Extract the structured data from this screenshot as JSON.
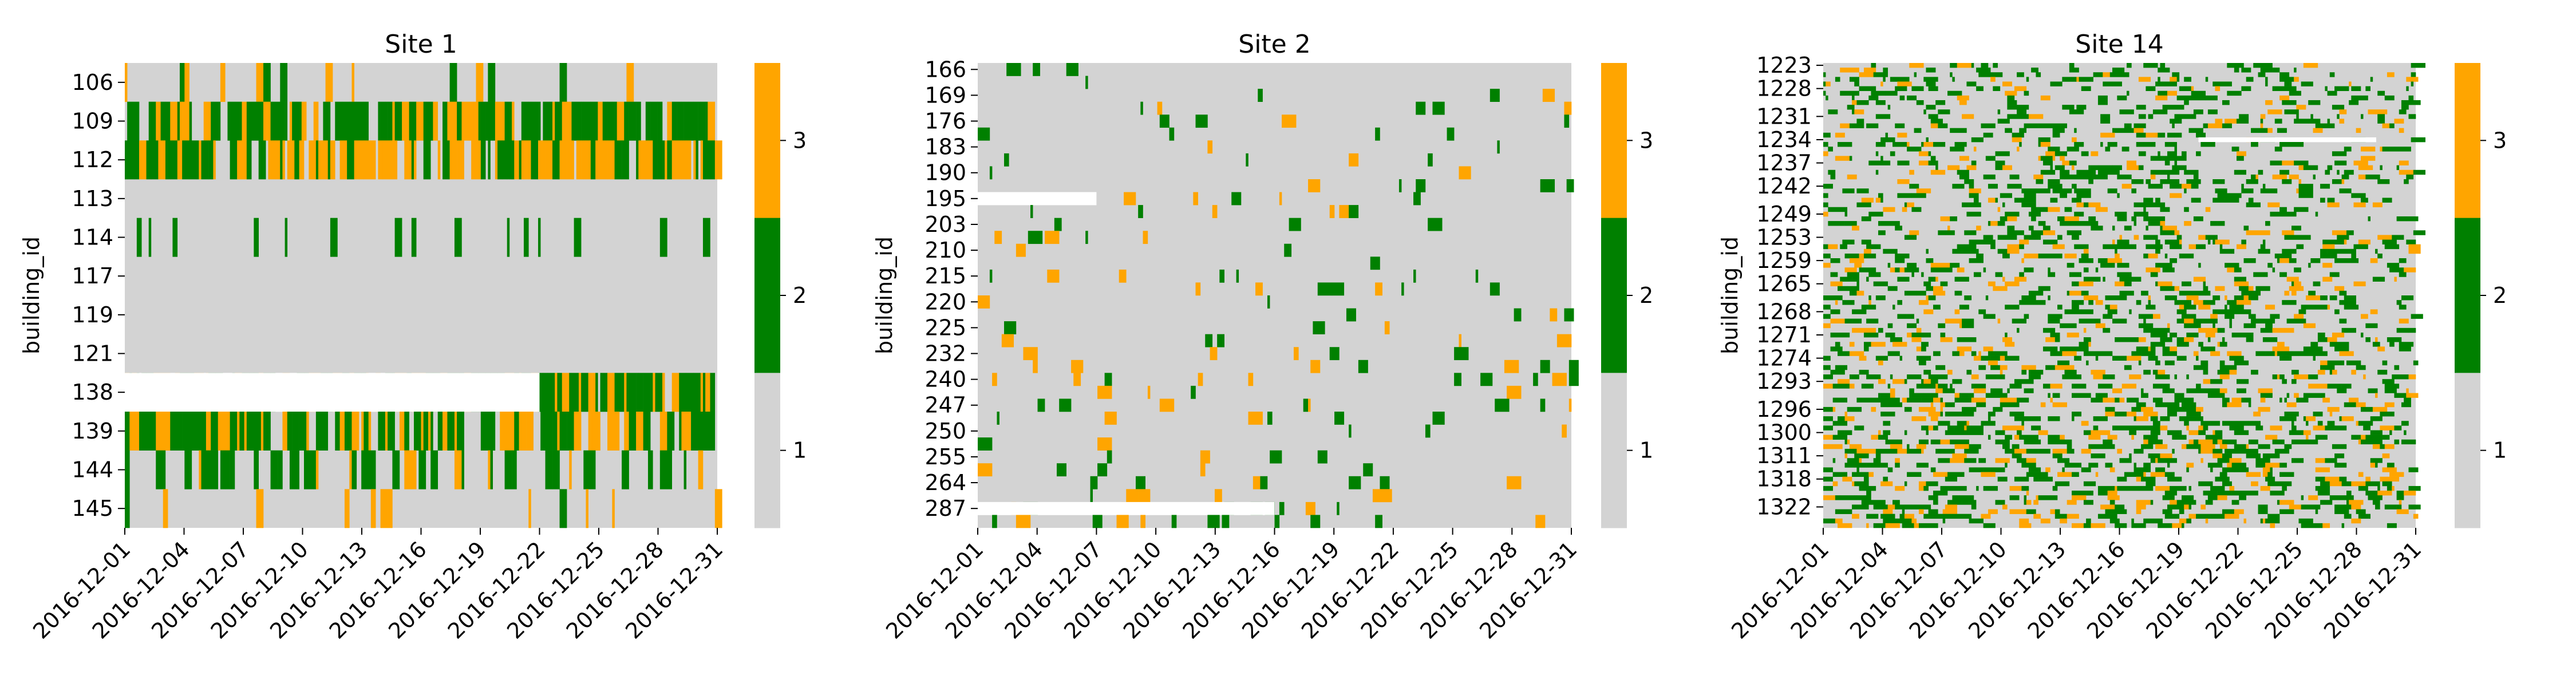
{
  "colors": {
    "level_1": "#d3d3d3",
    "level_2": "#008000",
    "level_3": "#ffa500",
    "missing": "#ffffff"
  },
  "chart_data": [
    {
      "type": "heatmap",
      "title": "Site 1",
      "ylabel": "building_id",
      "xlabel": "",
      "x_ticks": [
        "2016-12-01",
        "2016-12-04",
        "2016-12-07",
        "2016-12-10",
        "2016-12-13",
        "2016-12-16",
        "2016-12-19",
        "2016-12-22",
        "2016-12-25",
        "2016-12-28",
        "2016-12-31"
      ],
      "x_range": [
        "2016-12-01",
        "2016-12-31"
      ],
      "y_tick_labels": [
        "106",
        "109",
        "112",
        "113",
        "114",
        "117",
        "119",
        "121",
        "138",
        "139",
        "144",
        "145"
      ],
      "rows": [
        {
          "building_id": "106",
          "dominant_level": 1,
          "level_2_share": 0.05,
          "level_3_share": 0.03,
          "missing_until": null
        },
        {
          "building_id": "109",
          "dominant_level": 2,
          "level_2_share": 0.55,
          "level_3_share": 0.3,
          "missing_until": null
        },
        {
          "building_id": "112",
          "dominant_level": 3,
          "level_2_share": 0.35,
          "level_3_share": 0.5,
          "missing_until": null
        },
        {
          "building_id": "113",
          "dominant_level": 1,
          "level_2_share": 0.0,
          "level_3_share": 0.0,
          "missing_until": null
        },
        {
          "building_id": "114",
          "dominant_level": 1,
          "level_2_share": 0.12,
          "level_3_share": 0.0,
          "missing_until": null
        },
        {
          "building_id": "117",
          "dominant_level": 1,
          "level_2_share": 0.0,
          "level_3_share": 0.0,
          "missing_until": null
        },
        {
          "building_id": "119",
          "dominant_level": 1,
          "level_2_share": 0.0,
          "level_3_share": 0.02,
          "missing_until": null
        },
        {
          "building_id": "121",
          "dominant_level": 1,
          "level_2_share": 0.0,
          "level_3_share": 0.0,
          "missing_until": null
        },
        {
          "building_id": "138",
          "dominant_level": 2,
          "level_2_share": 0.5,
          "level_3_share": 0.3,
          "missing_until": "2016-12-22"
        },
        {
          "building_id": "139",
          "dominant_level": 2,
          "level_2_share": 0.55,
          "level_3_share": 0.3,
          "missing_until": null
        },
        {
          "building_id": "144",
          "dominant_level": 1,
          "level_2_share": 0.35,
          "level_3_share": 0.05,
          "missing_until": null
        },
        {
          "building_id": "145",
          "dominant_level": 1,
          "level_2_share": 0.02,
          "level_3_share": 0.05,
          "missing_until": null
        }
      ],
      "colorbar": {
        "ticks": [
          "1",
          "2",
          "3"
        ],
        "levels": [
          1,
          2,
          3
        ]
      }
    },
    {
      "type": "heatmap",
      "title": "Site 2",
      "ylabel": "building_id",
      "xlabel": "",
      "x_ticks": [
        "2016-12-01",
        "2016-12-04",
        "2016-12-07",
        "2016-12-10",
        "2016-12-13",
        "2016-12-16",
        "2016-12-19",
        "2016-12-22",
        "2016-12-25",
        "2016-12-28",
        "2016-12-31"
      ],
      "x_range": [
        "2016-12-01",
        "2016-12-31"
      ],
      "y_tick_labels": [
        "166",
        "169",
        "176",
        "183",
        "190",
        "195",
        "203",
        "210",
        "215",
        "220",
        "225",
        "232",
        "240",
        "247",
        "250",
        "255",
        "264",
        "287"
      ],
      "rows_count": 36,
      "level_2_share": 0.12,
      "level_3_share": 0.05,
      "missing_regions": [
        {
          "building_id": "195",
          "from": "2016-12-01",
          "to": "2016-12-07"
        },
        {
          "building_id": "287",
          "from": "2016-12-01",
          "to": "2016-12-16"
        }
      ],
      "colorbar": {
        "ticks": [
          "1",
          "2",
          "3"
        ],
        "levels": [
          1,
          2,
          3
        ]
      }
    },
    {
      "type": "heatmap",
      "title": "Site 14",
      "ylabel": "building_id",
      "xlabel": "",
      "x_ticks": [
        "2016-12-01",
        "2016-12-04",
        "2016-12-07",
        "2016-12-10",
        "2016-12-13",
        "2016-12-16",
        "2016-12-19",
        "2016-12-22",
        "2016-12-25",
        "2016-12-28",
        "2016-12-31"
      ],
      "x_range": [
        "2016-12-01",
        "2016-12-31"
      ],
      "y_tick_labels": [
        "1223",
        "1228",
        "1231",
        "1234",
        "1237",
        "1242",
        "1249",
        "1253",
        "1259",
        "1265",
        "1268",
        "1271",
        "1274",
        "1293",
        "1296",
        "1300",
        "1311",
        "1318",
        "1322"
      ],
      "rows_count": 100,
      "level_2_share": 0.12,
      "level_3_share": 0.04,
      "missing_regions": [
        {
          "building_id": "1234",
          "from": "2016-12-20",
          "to": "2016-12-29"
        }
      ],
      "colorbar": {
        "ticks": [
          "1",
          "2",
          "3"
        ],
        "levels": [
          1,
          2,
          3
        ]
      }
    }
  ]
}
